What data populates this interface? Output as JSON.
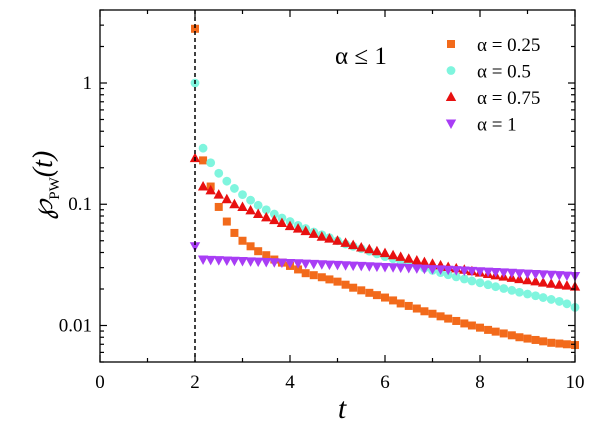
{
  "chart_data": {
    "type": "scatter",
    "title": "",
    "xlabel": "t",
    "ylabel_symbol": "℘",
    "ylabel_sub": "PW",
    "ylabel_arg": "(t)",
    "xscale": "linear",
    "yscale": "log",
    "xlim": [
      0,
      10
    ],
    "ylim": [
      0.005,
      4
    ],
    "xticks": [
      0,
      2,
      4,
      6,
      8,
      10
    ],
    "xtick_labels": [
      "0",
      "2",
      "4",
      "6",
      "8",
      "10"
    ],
    "yticks": [
      0.01,
      0.1,
      1
    ],
    "ytick_labels": [
      "0.01",
      "0.1",
      "1"
    ],
    "vline_x": 2,
    "annotation": "α ≤ 1",
    "legend_position": "top-right",
    "series": [
      {
        "name": "α = 0.25",
        "marker": "square",
        "color": "#f26a1b",
        "x": [
          2.0,
          2.17,
          2.33,
          2.5,
          2.67,
          2.83,
          3.0,
          3.17,
          3.33,
          3.5,
          3.67,
          3.83,
          4.0,
          4.17,
          4.33,
          4.5,
          4.67,
          4.83,
          5.0,
          5.17,
          5.33,
          5.5,
          5.67,
          5.83,
          6.0,
          6.17,
          6.33,
          6.5,
          6.67,
          6.83,
          7.0,
          7.17,
          7.33,
          7.5,
          7.67,
          7.83,
          8.0,
          8.17,
          8.33,
          8.5,
          8.67,
          8.83,
          9.0,
          9.17,
          9.33,
          9.5,
          9.67,
          9.83,
          10.0
        ],
        "y": [
          2.8,
          0.23,
          0.14,
          0.095,
          0.072,
          0.058,
          0.05,
          0.045,
          0.041,
          0.038,
          0.035,
          0.033,
          0.031,
          0.029,
          0.027,
          0.026,
          0.025,
          0.024,
          0.023,
          0.0217,
          0.0205,
          0.0195,
          0.0186,
          0.0178,
          0.017,
          0.0161,
          0.0152,
          0.0145,
          0.0138,
          0.0131,
          0.0125,
          0.0119,
          0.0114,
          0.0109,
          0.0104,
          0.01,
          0.0096,
          0.0092,
          0.0089,
          0.0086,
          0.0083,
          0.008,
          0.0078,
          0.0076,
          0.0074,
          0.0072,
          0.0071,
          0.007,
          0.0069
        ]
      },
      {
        "name": "α = 0.5",
        "marker": "circle",
        "color": "#7ff5de",
        "x": [
          2.0,
          2.17,
          2.33,
          2.5,
          2.67,
          2.83,
          3.0,
          3.17,
          3.33,
          3.5,
          3.67,
          3.83,
          4.0,
          4.17,
          4.33,
          4.5,
          4.67,
          4.83,
          5.0,
          5.17,
          5.33,
          5.5,
          5.67,
          5.83,
          6.0,
          6.17,
          6.33,
          6.5,
          6.67,
          6.83,
          7.0,
          7.17,
          7.33,
          7.5,
          7.67,
          7.83,
          8.0,
          8.17,
          8.33,
          8.5,
          8.67,
          8.83,
          9.0,
          9.17,
          9.33,
          9.5,
          9.67,
          9.83,
          10.0
        ],
        "y": [
          1.0,
          0.29,
          0.22,
          0.18,
          0.155,
          0.135,
          0.12,
          0.108,
          0.098,
          0.09,
          0.083,
          0.077,
          0.072,
          0.067,
          0.063,
          0.059,
          0.056,
          0.053,
          0.05,
          0.047,
          0.045,
          0.043,
          0.041,
          0.039,
          0.037,
          0.0355,
          0.034,
          0.0325,
          0.031,
          0.0297,
          0.0285,
          0.0273,
          0.0262,
          0.0252,
          0.0242,
          0.0233,
          0.0225,
          0.0217,
          0.0209,
          0.0202,
          0.0195,
          0.0188,
          0.0182,
          0.0176,
          0.017,
          0.0164,
          0.0158,
          0.0151,
          0.0141
        ]
      },
      {
        "name": "α = 0.75",
        "marker": "triangle-up",
        "color": "#e81010",
        "x": [
          2.0,
          2.17,
          2.33,
          2.5,
          2.67,
          2.83,
          3.0,
          3.17,
          3.33,
          3.5,
          3.67,
          3.83,
          4.0,
          4.17,
          4.33,
          4.5,
          4.67,
          4.83,
          5.0,
          5.17,
          5.33,
          5.5,
          5.67,
          5.83,
          6.0,
          6.17,
          6.33,
          6.5,
          6.67,
          6.83,
          7.0,
          7.17,
          7.33,
          7.5,
          7.67,
          7.83,
          8.0,
          8.17,
          8.33,
          8.5,
          8.67,
          8.83,
          9.0,
          9.17,
          9.33,
          9.5,
          9.67,
          9.83,
          10.0
        ],
        "y": [
          0.24,
          0.14,
          0.13,
          0.12,
          0.11,
          0.1,
          0.095,
          0.089,
          0.083,
          0.078,
          0.074,
          0.07,
          0.066,
          0.063,
          0.06,
          0.057,
          0.054,
          0.052,
          0.05,
          0.048,
          0.046,
          0.044,
          0.0425,
          0.041,
          0.0395,
          0.038,
          0.0368,
          0.0355,
          0.0344,
          0.0333,
          0.0323,
          0.0313,
          0.0304,
          0.0296,
          0.0288,
          0.028,
          0.0273,
          0.0266,
          0.0259,
          0.0253,
          0.0247,
          0.0241,
          0.0236,
          0.0231,
          0.0226,
          0.0221,
          0.0217,
          0.0213,
          0.0209
        ]
      },
      {
        "name": "α = 1",
        "marker": "triangle-down",
        "color": "#a83df5",
        "x": [
          2.0,
          2.17,
          2.33,
          2.5,
          2.67,
          2.83,
          3.0,
          3.17,
          3.33,
          3.5,
          3.67,
          3.83,
          4.0,
          4.17,
          4.33,
          4.5,
          4.67,
          4.83,
          5.0,
          5.17,
          5.33,
          5.5,
          5.67,
          5.83,
          6.0,
          6.17,
          6.33,
          6.5,
          6.67,
          6.83,
          7.0,
          7.17,
          7.33,
          7.5,
          7.67,
          7.83,
          8.0,
          8.17,
          8.33,
          8.5,
          8.67,
          8.83,
          9.0,
          9.17,
          9.33,
          9.5,
          9.67,
          9.83,
          10.0
        ],
        "y": [
          0.045,
          0.035,
          0.0348,
          0.0346,
          0.0344,
          0.0342,
          0.034,
          0.0338,
          0.0336,
          0.0334,
          0.0332,
          0.033,
          0.0328,
          0.0326,
          0.0324,
          0.0322,
          0.032,
          0.0318,
          0.0316,
          0.0314,
          0.0312,
          0.031,
          0.0308,
          0.0306,
          0.0304,
          0.0302,
          0.03,
          0.0298,
          0.0296,
          0.0294,
          0.0292,
          0.029,
          0.0288,
          0.0286,
          0.0284,
          0.0282,
          0.028,
          0.0278,
          0.0276,
          0.0274,
          0.0272,
          0.027,
          0.0268,
          0.0266,
          0.0264,
          0.0262,
          0.026,
          0.0258,
          0.0256
        ]
      }
    ]
  }
}
